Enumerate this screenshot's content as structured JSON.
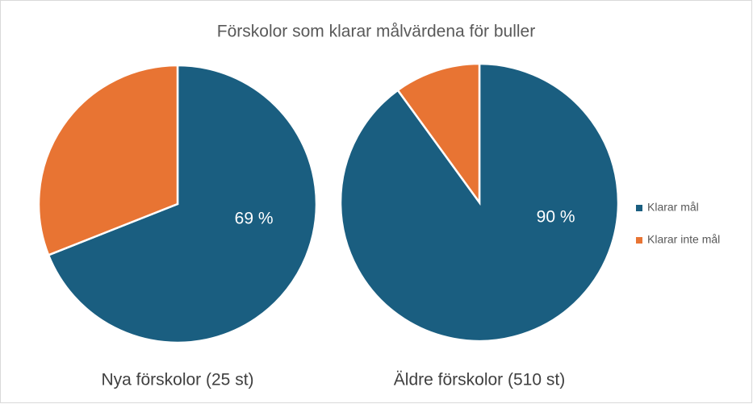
{
  "title": "Förskolor som klarar målvärdena för buller",
  "chart_data": [
    {
      "type": "pie",
      "title": "Nya förskolor (25 st)",
      "categories": [
        "Klarar mål",
        "Klarar inte mål"
      ],
      "values": [
        69,
        31
      ],
      "value_labels": [
        "69 %",
        null
      ],
      "colors": [
        "#1a5e80",
        "#e87433"
      ]
    },
    {
      "type": "pie",
      "title": "Äldre förskolor (510 st)",
      "categories": [
        "Klarar mål",
        "Klarar inte mål"
      ],
      "values": [
        90,
        10
      ],
      "value_labels": [
        "90 %",
        null
      ],
      "colors": [
        "#1a5e80",
        "#e87433"
      ]
    }
  ]
}
